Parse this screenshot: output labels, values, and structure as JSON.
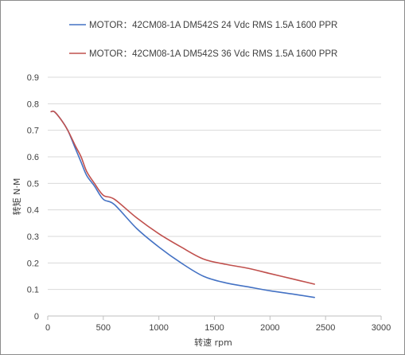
{
  "chart_data": {
    "type": "line",
    "title": "",
    "xlabel": "转速 rpm",
    "ylabel": "转矩 N·M",
    "xlim": [
      0,
      3000
    ],
    "ylim": [
      0,
      0.9
    ],
    "xticks": [
      "0",
      "500",
      "1000",
      "1500",
      "2000",
      "2500",
      "3000"
    ],
    "yticks": [
      "0",
      "0.1",
      "0.2",
      "0.3",
      "0.4",
      "0.5",
      "0.6",
      "0.7",
      "0.8",
      "0.9"
    ],
    "grid": "horizontal",
    "legend_position": "top",
    "series": [
      {
        "name": "MOTOR：42CM08-1A DM542S 24 Vdc  RMS 1.5A 1600 PPR",
        "color": "#4472c4",
        "x": [
          30,
          60,
          120,
          180,
          250,
          300,
          350,
          420,
          500,
          600,
          800,
          1000,
          1200,
          1400,
          1600,
          1800,
          2000,
          2200,
          2400
        ],
        "y": [
          0.77,
          0.77,
          0.74,
          0.7,
          0.63,
          0.58,
          0.53,
          0.49,
          0.44,
          0.42,
          0.33,
          0.26,
          0.2,
          0.15,
          0.125,
          0.11,
          0.095,
          0.083,
          0.07
        ]
      },
      {
        "name": "MOTOR：42CM08-1A DM542S 36 Vdc  RMS 1.5A 1600 PPR",
        "color": "#c0504d",
        "x": [
          30,
          60,
          120,
          180,
          250,
          300,
          350,
          420,
          500,
          600,
          800,
          1000,
          1200,
          1400,
          1600,
          1800,
          2000,
          2200,
          2400
        ],
        "y": [
          0.77,
          0.77,
          0.74,
          0.7,
          0.64,
          0.6,
          0.545,
          0.5,
          0.455,
          0.44,
          0.37,
          0.31,
          0.26,
          0.215,
          0.195,
          0.18,
          0.16,
          0.14,
          0.12
        ]
      }
    ]
  }
}
